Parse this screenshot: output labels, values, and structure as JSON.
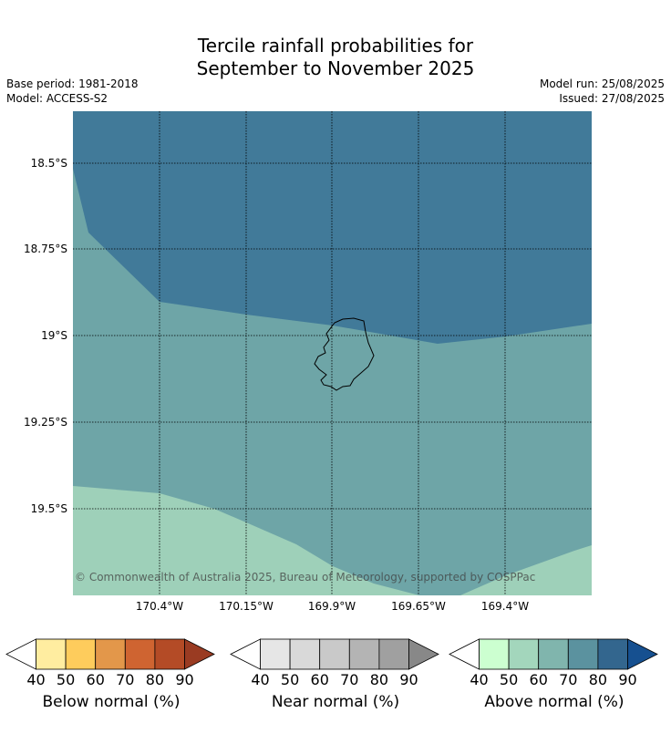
{
  "title": {
    "line1": "Tercile rainfall probabilities for",
    "line2": "September to November 2025"
  },
  "meta": {
    "base_period": "Base period: 1981-2018",
    "model": "Model: ACCESS-S2",
    "model_run": "Model run: 25/08/2025",
    "issued": "Issued: 27/08/2025"
  },
  "map": {
    "lat_ticks": [
      "18.5°S",
      "18.75°S",
      "19°S",
      "19.25°S",
      "19.5°S"
    ],
    "lon_ticks": [
      "170.4°W",
      "170.15°W",
      "169.9°W",
      "169.65°W",
      "169.4°W"
    ],
    "copyright": "© Commonwealth of Australia 2025, Bureau of Meteorology, supported by COSPPac",
    "colors": {
      "above_80_90": "#417a99",
      "above_70_80": "#6ea5a7",
      "above_60_70": "#9ed0b9",
      "grid": "#000000",
      "coastline": "#000000"
    }
  },
  "legends": [
    {
      "label": "Below normal (%)",
      "ticks": [
        "40",
        "50",
        "60",
        "70",
        "80",
        "90"
      ],
      "colors": [
        "#ffffff",
        "#ffeda0",
        "#fecc5c",
        "#e3974a",
        "#cf6431",
        "#b44b26",
        "#9a3b22"
      ]
    },
    {
      "label": "Near normal (%)",
      "ticks": [
        "40",
        "50",
        "60",
        "70",
        "80",
        "90"
      ],
      "colors": [
        "#ffffff",
        "#e6e6e6",
        "#d9d9d9",
        "#c9c9c9",
        "#b4b4b4",
        "#a0a0a0",
        "#888888"
      ]
    },
    {
      "label": "Above normal (%)",
      "ticks": [
        "40",
        "50",
        "60",
        "70",
        "80",
        "90"
      ],
      "colors": [
        "#ffffff",
        "#ccffd0",
        "#a3d6bc",
        "#80b5ad",
        "#5b929f",
        "#33668e",
        "#165090"
      ]
    }
  ]
}
